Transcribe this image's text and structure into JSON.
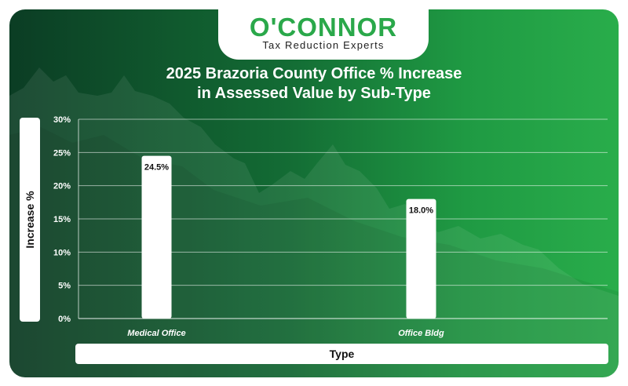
{
  "brand": {
    "logo_text": "O'CONNOR",
    "tagline": "Tax Reduction Experts",
    "accent_color": "#2aa84a"
  },
  "chart_data": {
    "type": "bar",
    "title_lines": [
      "2025 Brazoria County Office % Increase",
      "in Assessed Value by Sub-Type"
    ],
    "xlabel": "Type",
    "ylabel": "Increase %",
    "categories": [
      "Medical Office",
      "Office Bldg"
    ],
    "values": [
      24.5,
      18.0
    ],
    "data_labels": [
      "24.5%",
      "18.0%"
    ],
    "ylim": [
      0,
      30
    ],
    "yticks": [
      0,
      5,
      10,
      15,
      20,
      25,
      30
    ],
    "ytick_labels": [
      "0%",
      "5%",
      "10%",
      "15%",
      "20%",
      "25%",
      "30%"
    ],
    "grid": true,
    "bar_color": "#ffffff"
  }
}
